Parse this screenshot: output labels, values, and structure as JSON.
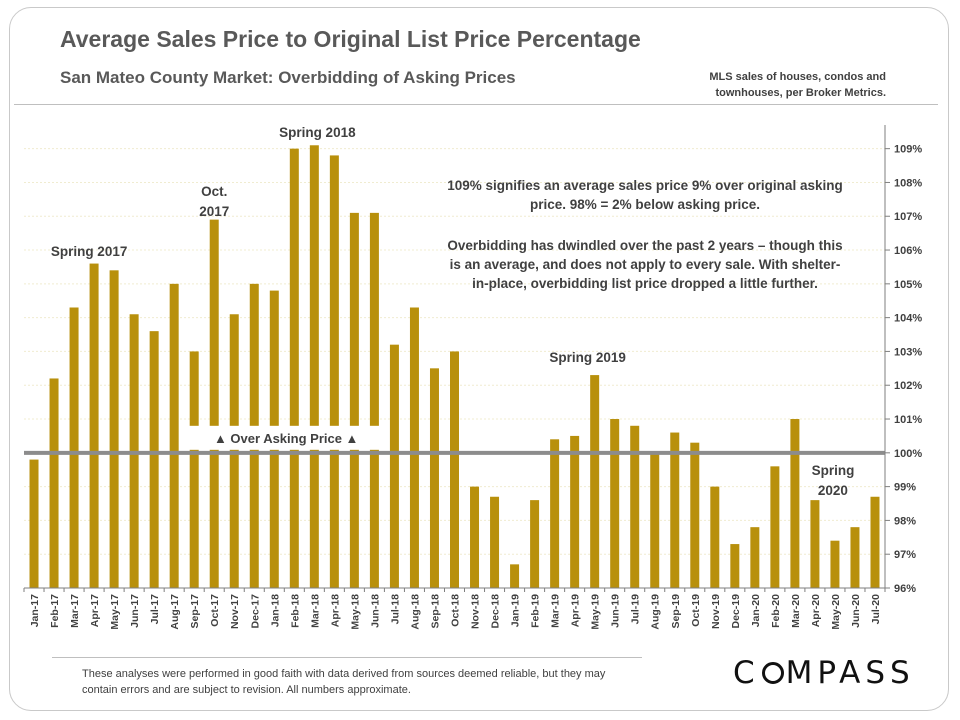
{
  "header": {
    "title": "Average Sales Price to Original List Price Percentage",
    "subtitle": "San Mateo County Market: Overbidding of Asking Prices",
    "source": "MLS sales of houses, condos and townhouses, per Broker Metrics."
  },
  "notes": {
    "note1": "109% signifies an average sales price 9% over original asking price. 98% = 2% below asking price.",
    "note2": "Overbidding has dwindled over the past 2 years – though this is an average, and does not apply to every sale. With shelter-in-place, overbidding list price dropped a little further."
  },
  "footer": {
    "disclaimer": "These analyses were performed in good faith with data derived from sources deemed reliable, but they may contain errors and are subject to revision. All numbers approximate."
  },
  "logo": {
    "text_before": "C",
    "text_after": "MPASS"
  },
  "colors": {
    "bar": "#b8900c",
    "reference_line": "#8c8c8c",
    "grid": "#f0ecd0"
  },
  "chart_data": {
    "type": "bar",
    "title": "Average Sales Price to Original List Price Percentage",
    "categories": [
      "Jan-17",
      "Feb-17",
      "Mar-17",
      "Apr-17",
      "May-17",
      "Jun-17",
      "Jul-17",
      "Aug-17",
      "Sep-17",
      "Oct-17",
      "Nov-17",
      "Dec-17",
      "Jan-18",
      "Feb-18",
      "Mar-18",
      "Apr-18",
      "May-18",
      "Jun-18",
      "Jul-18",
      "Aug-18",
      "Sep-18",
      "Oct-18",
      "Nov-18",
      "Dec-18",
      "Jan-19",
      "Feb-19",
      "Mar-19",
      "Apr-19",
      "May-19",
      "Jun-19",
      "Jul-19",
      "Aug-19",
      "Sep-19",
      "Oct-19",
      "Nov-19",
      "Dec-19",
      "Jan-20",
      "Feb-20",
      "Mar-20",
      "Apr-20",
      "May-20",
      "Jun-20",
      "Jul-20"
    ],
    "values": [
      99.8,
      102.2,
      104.3,
      105.6,
      105.4,
      104.1,
      103.6,
      105.0,
      103.0,
      106.9,
      104.1,
      105.0,
      104.8,
      109.0,
      109.1,
      108.8,
      107.1,
      107.1,
      103.2,
      104.3,
      102.5,
      103.0,
      99.0,
      98.7,
      96.7,
      98.6,
      100.4,
      100.5,
      102.3,
      101.0,
      100.8,
      100.0,
      100.6,
      100.3,
      99.0,
      97.3,
      97.8,
      99.6,
      101.0,
      98.6,
      97.4,
      97.8,
      98.7
    ],
    "ylim": [
      96,
      109.7
    ],
    "yticks": [
      96,
      97,
      98,
      99,
      100,
      101,
      102,
      103,
      104,
      105,
      106,
      107,
      108,
      109
    ],
    "ytick_labels": [
      "96%",
      "97%",
      "98%",
      "99%",
      "100%",
      "101%",
      "102%",
      "103%",
      "104%",
      "105%",
      "106%",
      "107%",
      "108%",
      "109%"
    ],
    "y_axis_side": "right",
    "reference_line": {
      "value": 100,
      "label": "▲ Over Asking Price ▲"
    },
    "annotations": [
      {
        "text": "Spring 2017",
        "at": "Apr-17"
      },
      {
        "text": "Oct.",
        "at": "Oct-17"
      },
      {
        "text": "2017",
        "at": "Oct-17"
      },
      {
        "text": "Spring 2018",
        "at": "Mar-18"
      },
      {
        "text": "Spring 2019",
        "at": "May-19"
      },
      {
        "text": "Spring",
        "at": "May-20"
      },
      {
        "text": "2020",
        "at": "May-20"
      }
    ],
    "grid": true
  }
}
